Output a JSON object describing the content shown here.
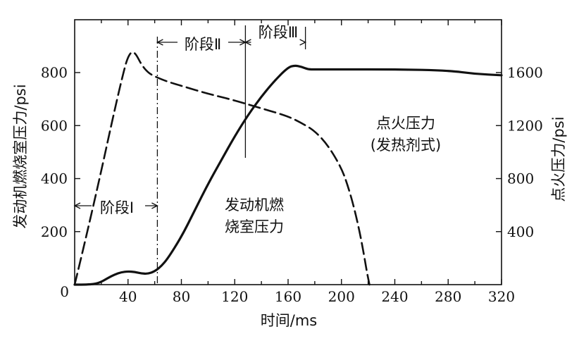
{
  "chart_data": {
    "type": "line",
    "xlabel": "时间/ms",
    "ylabel_left": "发动机燃烧室压力/psi",
    "ylabel_right": "点火压力/psi",
    "xlim": [
      0,
      320
    ],
    "ylim_left": [
      0,
      1000
    ],
    "ylim_right": [
      0,
      2000
    ],
    "x_ticks": [
      40,
      80,
      120,
      160,
      200,
      240,
      280,
      320
    ],
    "y_left_ticks": [
      0,
      200,
      400,
      600,
      800
    ],
    "y_right_ticks": [
      400,
      800,
      1200,
      1600
    ],
    "origin_label": "0",
    "grid": false,
    "phase_boundaries_ms": [
      62,
      128,
      173
    ],
    "phase_labels": [
      "阶段Ⅰ",
      "阶段Ⅱ",
      "阶段Ⅲ"
    ],
    "series": [
      {
        "label": "点火压力 (发热剂式)",
        "style": "dashed",
        "axis": "right",
        "x": [
          0,
          10,
          20,
          30,
          37,
          40,
          43,
          46,
          50,
          55,
          60,
          70,
          80,
          100,
          120,
          140,
          160,
          170,
          180,
          190,
          200,
          205,
          210,
          214,
          217,
          219,
          221
        ],
        "y": [
          0,
          420,
          860,
          1320,
          1620,
          1720,
          1760,
          1740,
          1660,
          1600,
          1570,
          1530,
          1500,
          1440,
          1390,
          1330,
          1270,
          1220,
          1160,
          1050,
          880,
          740,
          560,
          380,
          220,
          100,
          0
        ]
      },
      {
        "label": "发动机燃烧室压力",
        "style": "solid",
        "axis": "left",
        "x": [
          0,
          10,
          18,
          25,
          30,
          35,
          40,
          45,
          50,
          55,
          60,
          65,
          70,
          80,
          90,
          100,
          110,
          120,
          130,
          140,
          150,
          160,
          165,
          170,
          175,
          180,
          200,
          240,
          280,
          300,
          320
        ],
        "y": [
          0,
          0,
          5,
          25,
          38,
          47,
          50,
          48,
          42,
          41,
          50,
          70,
          100,
          180,
          280,
          380,
          470,
          560,
          640,
          710,
          770,
          820,
          827,
          822,
          812,
          812,
          812,
          812,
          808,
          795,
          790
        ]
      }
    ],
    "annotations": {
      "phase1": "阶段Ⅰ",
      "phase2": "阶段Ⅱ",
      "phase3": "阶段Ⅲ",
      "ignition_line1": "点火压力",
      "ignition_line2": "(发热剂式)",
      "chamber_line1": "发动机燃",
      "chamber_line2": "烧室压力"
    }
  }
}
